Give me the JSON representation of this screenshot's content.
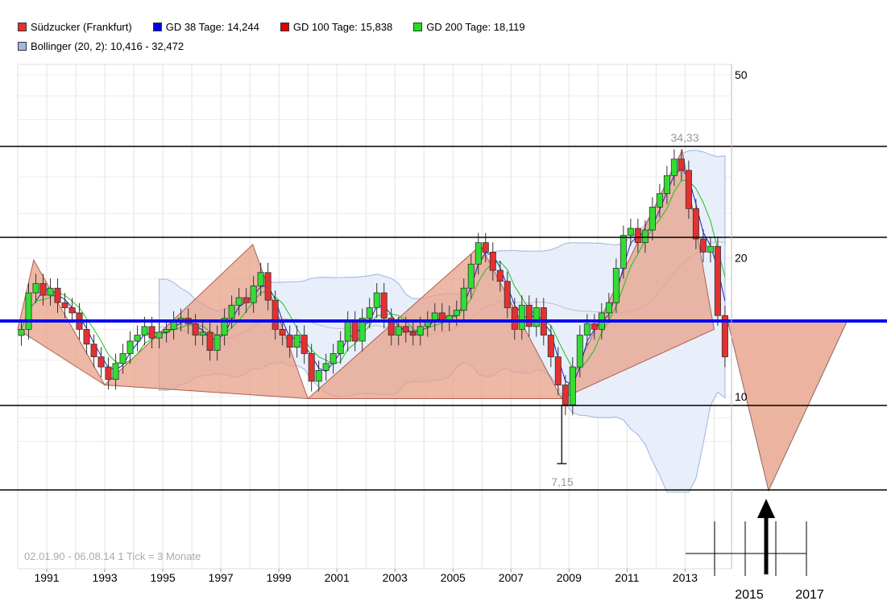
{
  "legend": {
    "row1": [
      {
        "label": "Südzucker (Frankfurt)",
        "color": "#e53030"
      },
      {
        "label": "GD 38 Tage: 14,244",
        "color": "#0000e0"
      },
      {
        "label": "GD 100 Tage: 15,838",
        "color": "#e00000"
      },
      {
        "label": "GD 200 Tage: 18,119",
        "color": "#20e020"
      }
    ],
    "row2": [
      {
        "label": "Bollinger (20, 2): 10,416 - 32,472",
        "color": "#9fb8e0"
      }
    ]
  },
  "footer_text": "02.01.90 - 06.08.14   1 Tick = 3 Monate",
  "annotations": {
    "high_label": "34,33",
    "low_label": "7,15"
  },
  "chart_data": {
    "type": "candlestick",
    "title": "",
    "y_scale": "log",
    "ylim": [
      6,
      52
    ],
    "y_ticks": [
      50,
      20,
      10
    ],
    "y_tick_labels": [
      "50",
      "20",
      "10"
    ],
    "x_range": [
      1990.0,
      2014.6
    ],
    "x_tick_labels": [
      "1991",
      "1993",
      "1995",
      "1997",
      "1999",
      "2001",
      "2003",
      "2005",
      "2007",
      "2009",
      "2011",
      "2013"
    ],
    "x_tick_years": [
      1991,
      1993,
      1995,
      1997,
      1999,
      2001,
      2003,
      2005,
      2007,
      2009,
      2011,
      2013
    ],
    "extended_axis_labels": [
      "2015",
      "2017"
    ],
    "extended_axis_years": [
      2015,
      2017
    ],
    "close_series": [
      [
        1990.0,
        14.0
      ],
      [
        1990.25,
        16.8
      ],
      [
        1990.5,
        17.6
      ],
      [
        1990.75,
        16.6
      ],
      [
        1991.0,
        17.2
      ],
      [
        1991.25,
        16.0
      ],
      [
        1991.5,
        15.6
      ],
      [
        1991.75,
        15.2
      ],
      [
        1992.0,
        14.0
      ],
      [
        1992.25,
        13.0
      ],
      [
        1992.5,
        12.2
      ],
      [
        1992.75,
        11.6
      ],
      [
        1993.0,
        10.9
      ],
      [
        1993.25,
        11.8
      ],
      [
        1993.5,
        12.4
      ],
      [
        1993.75,
        13.2
      ],
      [
        1994.0,
        13.6
      ],
      [
        1994.25,
        14.2
      ],
      [
        1994.5,
        13.4
      ],
      [
        1994.75,
        13.8
      ],
      [
        1995.0,
        14.0
      ],
      [
        1995.25,
        14.6
      ],
      [
        1995.5,
        14.8
      ],
      [
        1995.75,
        14.4
      ],
      [
        1996.0,
        13.6
      ],
      [
        1996.25,
        13.8
      ],
      [
        1996.5,
        12.6
      ],
      [
        1996.75,
        13.6
      ],
      [
        1997.0,
        14.8
      ],
      [
        1997.25,
        15.8
      ],
      [
        1997.5,
        16.4
      ],
      [
        1997.75,
        16.0
      ],
      [
        1998.0,
        17.4
      ],
      [
        1998.25,
        18.6
      ],
      [
        1998.5,
        16.2
      ],
      [
        1998.75,
        14.0
      ],
      [
        1999.0,
        13.6
      ],
      [
        1999.25,
        12.8
      ],
      [
        1999.5,
        13.6
      ],
      [
        1999.75,
        12.4
      ],
      [
        2000.0,
        10.8
      ],
      [
        2000.25,
        11.4
      ],
      [
        2000.5,
        11.8
      ],
      [
        2000.75,
        12.4
      ],
      [
        2001.0,
        13.2
      ],
      [
        2001.25,
        14.6
      ],
      [
        2001.5,
        13.2
      ],
      [
        2001.75,
        14.8
      ],
      [
        2002.0,
        15.6
      ],
      [
        2002.25,
        16.8
      ],
      [
        2002.5,
        14.8
      ],
      [
        2002.75,
        13.6
      ],
      [
        2003.0,
        14.2
      ],
      [
        2003.25,
        13.8
      ],
      [
        2003.5,
        13.6
      ],
      [
        2003.75,
        14.2
      ],
      [
        2004.0,
        14.6
      ],
      [
        2004.25,
        15.2
      ],
      [
        2004.5,
        14.6
      ],
      [
        2004.75,
        15.0
      ],
      [
        2005.0,
        15.4
      ],
      [
        2005.25,
        17.2
      ],
      [
        2005.5,
        19.4
      ],
      [
        2005.75,
        21.6
      ],
      [
        2006.0,
        20.6
      ],
      [
        2006.25,
        18.8
      ],
      [
        2006.5,
        17.8
      ],
      [
        2006.75,
        15.6
      ],
      [
        2007.0,
        14.0
      ],
      [
        2007.25,
        15.8
      ],
      [
        2007.5,
        14.2
      ],
      [
        2007.75,
        15.6
      ],
      [
        2008.0,
        13.6
      ],
      [
        2008.25,
        12.2
      ],
      [
        2008.5,
        10.6
      ],
      [
        2008.75,
        9.6
      ],
      [
        2009.0,
        11.6
      ],
      [
        2009.25,
        13.6
      ],
      [
        2009.5,
        14.4
      ],
      [
        2009.75,
        14.0
      ],
      [
        2010.0,
        15.2
      ],
      [
        2010.25,
        16.0
      ],
      [
        2010.5,
        19.0
      ],
      [
        2010.75,
        22.4
      ],
      [
        2011.0,
        23.2
      ],
      [
        2011.25,
        21.6
      ],
      [
        2011.5,
        23.0
      ],
      [
        2011.75,
        25.8
      ],
      [
        2012.0,
        27.6
      ],
      [
        2012.25,
        30.2
      ],
      [
        2012.5,
        32.8
      ],
      [
        2012.75,
        31.0
      ],
      [
        2013.0,
        25.6
      ],
      [
        2013.25,
        22.0
      ],
      [
        2013.5,
        20.6
      ],
      [
        2013.75,
        21.2
      ],
      [
        2014.0,
        15.0
      ],
      [
        2014.25,
        12.2
      ]
    ],
    "extremes": {
      "high": 34.33,
      "low": 7.15
    }
  }
}
